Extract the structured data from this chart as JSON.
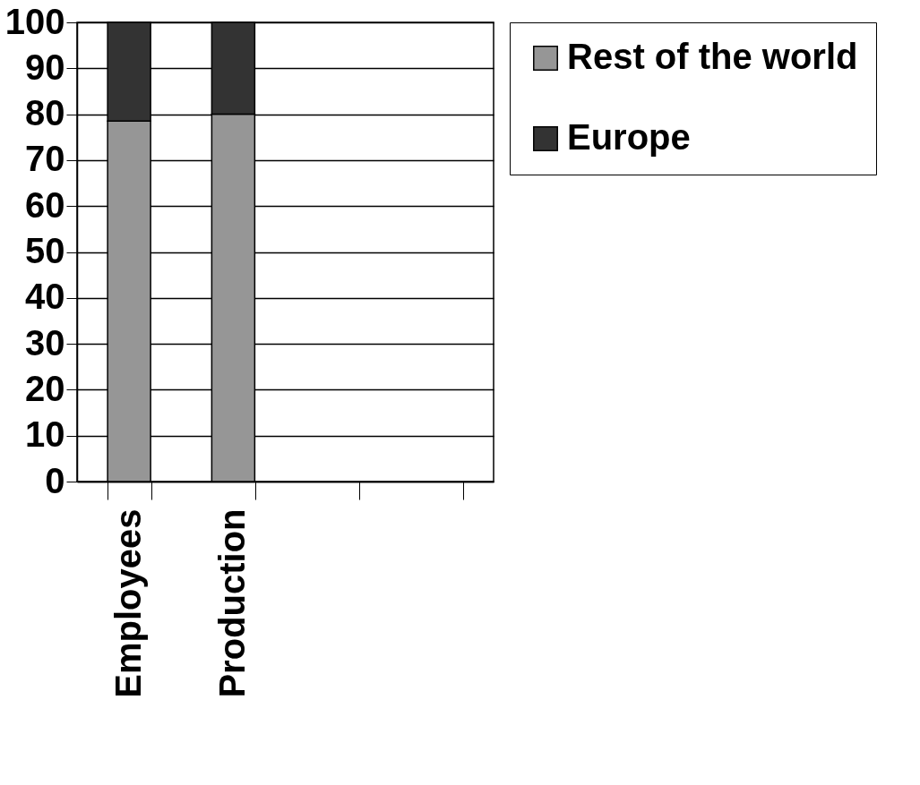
{
  "chart_data": {
    "type": "bar",
    "stacked": true,
    "categories": [
      "Employees",
      "Production",
      null,
      null
    ],
    "series": [
      {
        "name": "Rest of the world",
        "color": "#969696",
        "values": [
          78.5,
          80,
          null,
          null
        ]
      },
      {
        "name": "Europe",
        "color": "#333333",
        "values": [
          21.5,
          20,
          null,
          null
        ]
      }
    ],
    "ylim": [
      0,
      100
    ],
    "yticks": [
      0,
      10,
      20,
      30,
      40,
      50,
      60,
      70,
      80,
      90,
      100
    ],
    "grid": "y",
    "legend": "right"
  }
}
